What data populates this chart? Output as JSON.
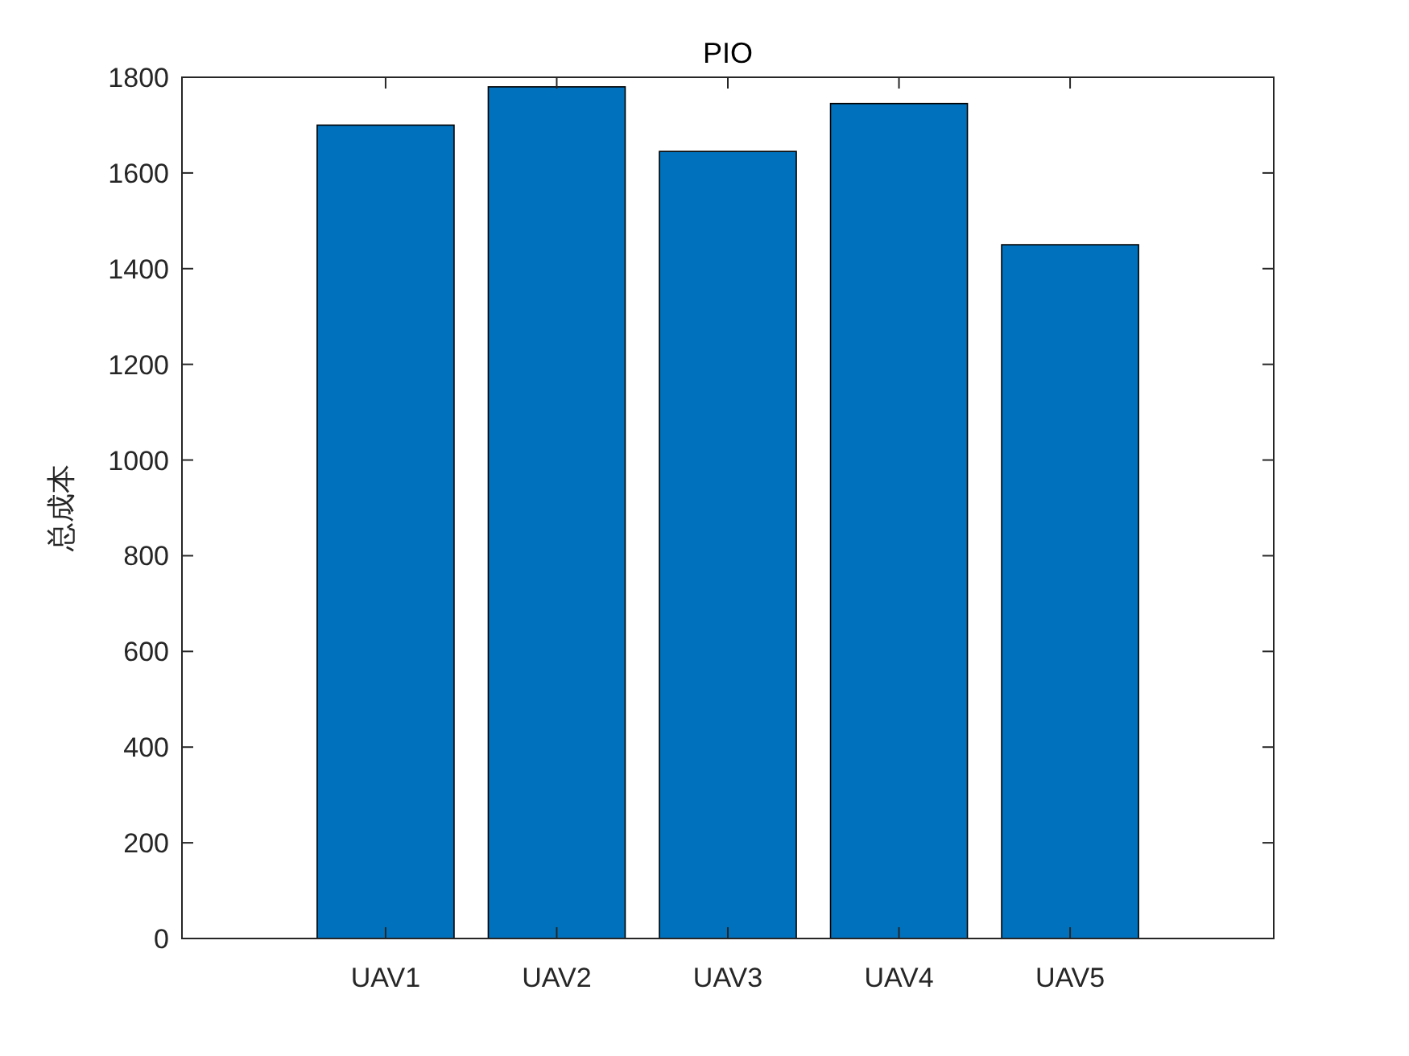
{
  "chart_data": {
    "type": "bar",
    "title": "PIO",
    "ylabel": "总成本",
    "categories": [
      "UAV1",
      "UAV2",
      "UAV3",
      "UAV4",
      "UAV5"
    ],
    "values": [
      1700,
      1780,
      1645,
      1745,
      1450
    ],
    "color": "#0072bd",
    "ylim": [
      0,
      1800
    ],
    "yticks": [
      0,
      200,
      400,
      600,
      800,
      1000,
      1200,
      1400,
      1600,
      1800
    ],
    "grid": false
  }
}
